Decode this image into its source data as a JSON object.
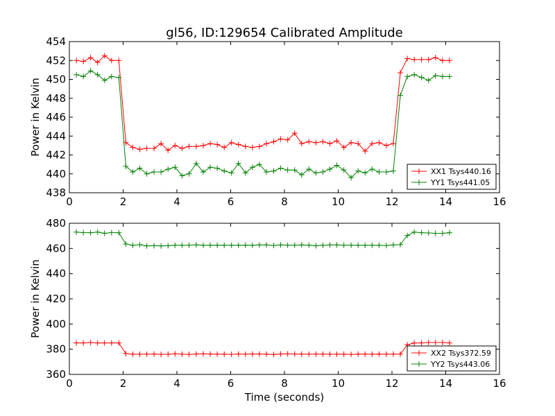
{
  "title": "gl56, ID:129654 Calibrated Amplitude",
  "chart_data": [
    {
      "type": "line",
      "title": "gl56, ID:129654 Calibrated Amplitude",
      "xlabel": "",
      "ylabel": "Power in Kelvin",
      "xlim": [
        0,
        16
      ],
      "ylim": [
        438,
        454
      ],
      "xticks": [
        0,
        2,
        4,
        6,
        8,
        10,
        12,
        14,
        16
      ],
      "yticks": [
        438,
        440,
        442,
        444,
        446,
        448,
        450,
        452,
        454
      ],
      "legend_position": "lower-right",
      "grid": false,
      "x": [
        0.26,
        0.52,
        0.79,
        1.05,
        1.31,
        1.57,
        1.84,
        2.1,
        2.36,
        2.62,
        2.88,
        3.15,
        3.41,
        3.67,
        3.93,
        4.19,
        4.45,
        4.72,
        4.98,
        5.24,
        5.5,
        5.76,
        6.03,
        6.29,
        6.55,
        6.81,
        7.07,
        7.33,
        7.6,
        7.86,
        8.12,
        8.38,
        8.64,
        8.91,
        9.17,
        9.43,
        9.69,
        9.95,
        10.21,
        10.48,
        10.74,
        11.0,
        11.26,
        11.52,
        11.79,
        12.05,
        12.31,
        12.57,
        12.83,
        13.1,
        13.36,
        13.62,
        13.88,
        14.14
      ],
      "series": [
        {
          "name": "XX1 Tsys440.16",
          "color": "#ff0000",
          "values": [
            452.0,
            451.9,
            452.3,
            451.8,
            452.5,
            452.0,
            452.0,
            443.3,
            442.8,
            442.6,
            442.7,
            442.7,
            443.2,
            442.5,
            443.0,
            442.7,
            442.9,
            442.9,
            443.0,
            443.2,
            443.1,
            442.8,
            443.3,
            443.1,
            442.9,
            442.8,
            442.9,
            443.2,
            443.4,
            443.7,
            443.6,
            444.3,
            443.2,
            443.4,
            443.3,
            443.4,
            443.2,
            443.5,
            442.8,
            443.3,
            443.2,
            442.4,
            443.2,
            443.3,
            443.0,
            443.2,
            450.7,
            452.2,
            452.1,
            452.1,
            452.1,
            452.3,
            452.0,
            452.0
          ]
        },
        {
          "name": "YY1 Tsys441.05",
          "color": "#008000",
          "values": [
            450.5,
            450.3,
            450.9,
            450.5,
            449.9,
            450.3,
            450.2,
            440.8,
            440.2,
            440.6,
            440.0,
            440.2,
            440.2,
            440.5,
            440.7,
            439.8,
            440.0,
            441.1,
            440.2,
            440.7,
            440.6,
            440.3,
            440.1,
            441.1,
            440.1,
            440.7,
            441.0,
            440.2,
            440.3,
            440.6,
            440.4,
            440.4,
            439.9,
            440.5,
            440.1,
            440.2,
            440.5,
            440.9,
            440.4,
            439.6,
            440.3,
            440.1,
            440.5,
            440.2,
            440.2,
            440.3,
            448.3,
            450.3,
            450.5,
            450.2,
            449.9,
            450.4,
            450.3,
            450.3
          ]
        }
      ]
    },
    {
      "type": "line",
      "title": "",
      "xlabel": "Time (seconds)",
      "ylabel": "Power in Kelvin",
      "xlim": [
        0,
        16
      ],
      "ylim": [
        360,
        480
      ],
      "xticks": [
        0,
        2,
        4,
        6,
        8,
        10,
        12,
        14,
        16
      ],
      "yticks": [
        360,
        380,
        400,
        420,
        440,
        460,
        480
      ],
      "legend_position": "lower-right",
      "grid": false,
      "x": [
        0.26,
        0.52,
        0.79,
        1.05,
        1.31,
        1.57,
        1.84,
        2.1,
        2.36,
        2.62,
        2.88,
        3.15,
        3.41,
        3.67,
        3.93,
        4.19,
        4.45,
        4.72,
        4.98,
        5.24,
        5.5,
        5.76,
        6.03,
        6.29,
        6.55,
        6.81,
        7.07,
        7.33,
        7.6,
        7.86,
        8.12,
        8.38,
        8.64,
        8.91,
        9.17,
        9.43,
        9.69,
        9.95,
        10.21,
        10.48,
        10.74,
        11.0,
        11.26,
        11.52,
        11.79,
        12.05,
        12.31,
        12.57,
        12.83,
        13.1,
        13.36,
        13.62,
        13.88,
        14.14
      ],
      "series": [
        {
          "name": "XX2 Tsys372.59",
          "color": "#ff0000",
          "values": [
            385.0,
            385.0,
            385.3,
            385.0,
            385.0,
            385.0,
            385.0,
            376.5,
            376.0,
            376.0,
            376.0,
            376.2,
            375.9,
            376.0,
            376.3,
            376.0,
            375.9,
            376.2,
            376.3,
            376.2,
            376.0,
            376.1,
            375.9,
            376.2,
            376.0,
            376.2,
            376.2,
            376.1,
            375.8,
            376.2,
            376.3,
            376.2,
            376.1,
            376.0,
            376.1,
            376.1,
            376.0,
            376.0,
            376.1,
            375.9,
            376.1,
            376.1,
            376.0,
            376.1,
            376.0,
            376.1,
            376.1,
            383.5,
            385.0,
            385.0,
            385.3,
            385.3,
            385.3,
            385.0
          ]
        },
        {
          "name": "YY2 Tsys443.06",
          "color": "#008000",
          "values": [
            473.0,
            472.6,
            472.5,
            473.0,
            472.0,
            472.6,
            472.5,
            463.5,
            462.5,
            463.0,
            462.0,
            462.2,
            462.0,
            462.2,
            462.6,
            462.5,
            462.6,
            462.9,
            462.5,
            462.6,
            462.5,
            462.6,
            462.5,
            462.5,
            462.6,
            462.5,
            462.8,
            462.8,
            462.4,
            462.8,
            462.6,
            462.6,
            462.8,
            462.6,
            462.2,
            462.5,
            462.8,
            462.8,
            462.6,
            462.6,
            462.5,
            462.5,
            462.5,
            462.5,
            462.3,
            462.8,
            463.0,
            470.3,
            473.0,
            472.5,
            472.3,
            472.0,
            472.0,
            472.5
          ]
        }
      ]
    }
  ]
}
